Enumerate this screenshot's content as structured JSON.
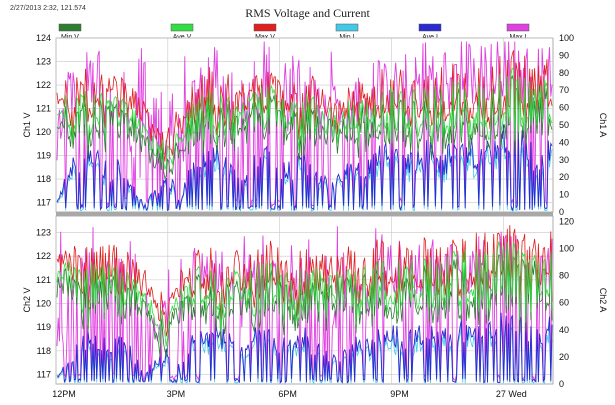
{
  "header": {
    "timestamp": "2/27/2013 2:32, 121.574",
    "title": "RMS Voltage and Current"
  },
  "legend": [
    {
      "label": "Min V",
      "color": "#2e7d32"
    },
    {
      "label": "Ave V",
      "color": "#33dd44"
    },
    {
      "label": "Max V",
      "color": "#e02020"
    },
    {
      "label": "Min I",
      "color": "#44c8e8"
    },
    {
      "label": "Ave I",
      "color": "#2a2ad0"
    },
    {
      "label": "Max I",
      "color": "#e040e0"
    }
  ],
  "chart_data": [
    {
      "type": "line",
      "name": "channel-1",
      "ylabel": "Ch1 V",
      "ylabel_right": "Ch1 A",
      "ylim": [
        116.6,
        124
      ],
      "yticks": [
        117,
        118,
        119,
        120,
        121,
        122,
        123,
        124
      ],
      "ylim_right": [
        0,
        100
      ],
      "yticks_right": [
        0,
        10,
        20,
        30,
        40,
        50,
        60,
        70,
        80,
        90,
        100
      ],
      "xlim": [
        0,
        40
      ],
      "voltage_base": [
        121.2,
        121.5,
        121.4,
        121.8,
        121.3,
        121.6,
        121.0,
        120.2,
        119.6,
        119.4,
        120.0,
        121.2,
        121.6,
        121.5,
        121.3,
        121.0,
        121.6,
        121.9,
        121.4,
        121.2,
        121.5,
        121.2,
        120.8,
        121.0,
        121.3,
        121.1,
        121.4,
        121.7,
        121.5,
        121.8,
        121.9,
        121.6,
        122.0,
        122.1,
        121.8,
        122.0,
        122.4,
        122.5,
        122.0,
        121.9,
        122.3
      ],
      "current_base": [
        6,
        30,
        40,
        45,
        30,
        35,
        20,
        5,
        15,
        25,
        10,
        35,
        40,
        42,
        30,
        25,
        40,
        45,
        35,
        30,
        40,
        30,
        20,
        25,
        35,
        30,
        40,
        45,
        35,
        40,
        45,
        35,
        45,
        50,
        40,
        45,
        55,
        60,
        45,
        40,
        50
      ]
    },
    {
      "type": "line",
      "name": "channel-2",
      "ylabel": "Ch2 V",
      "ylabel_right": "Ch2 A",
      "ylim": [
        116.6,
        123.7
      ],
      "yticks": [
        117,
        118,
        119,
        120,
        121,
        122,
        123
      ],
      "ylim_right": [
        0,
        124
      ],
      "yticks_right": [
        0,
        20,
        40,
        60,
        80,
        100,
        120
      ],
      "xlim": [
        0,
        40
      ],
      "voltage_base": [
        121.4,
        121.6,
        121.3,
        121.7,
        121.5,
        121.4,
        121.0,
        120.5,
        119.8,
        119.6,
        120.4,
        121.2,
        121.5,
        121.4,
        121.1,
        121.3,
        121.6,
        121.8,
        121.4,
        121.1,
        121.5,
        121.3,
        121.0,
        121.2,
        121.4,
        121.3,
        121.6,
        121.8,
        121.5,
        121.9,
        121.8,
        121.7,
        122.0,
        122.2,
        121.9,
        122.1,
        122.5,
        122.4,
        122.0,
        121.8,
        122.2
      ],
      "current_base": [
        8,
        20,
        40,
        45,
        35,
        40,
        30,
        10,
        20,
        30,
        15,
        40,
        45,
        50,
        40,
        30,
        45,
        50,
        40,
        35,
        45,
        35,
        25,
        30,
        40,
        35,
        45,
        50,
        40,
        45,
        50,
        40,
        50,
        55,
        45,
        50,
        60,
        65,
        50,
        45,
        55
      ]
    }
  ],
  "xaxis": {
    "ticks": [
      {
        "x": 0,
        "label": "12PM"
      },
      {
        "x": 9,
        "label": "3PM"
      },
      {
        "x": 18,
        "label": "6PM"
      },
      {
        "x": 27,
        "label": "9PM"
      },
      {
        "x": 36,
        "label": "27 Wed"
      }
    ]
  }
}
